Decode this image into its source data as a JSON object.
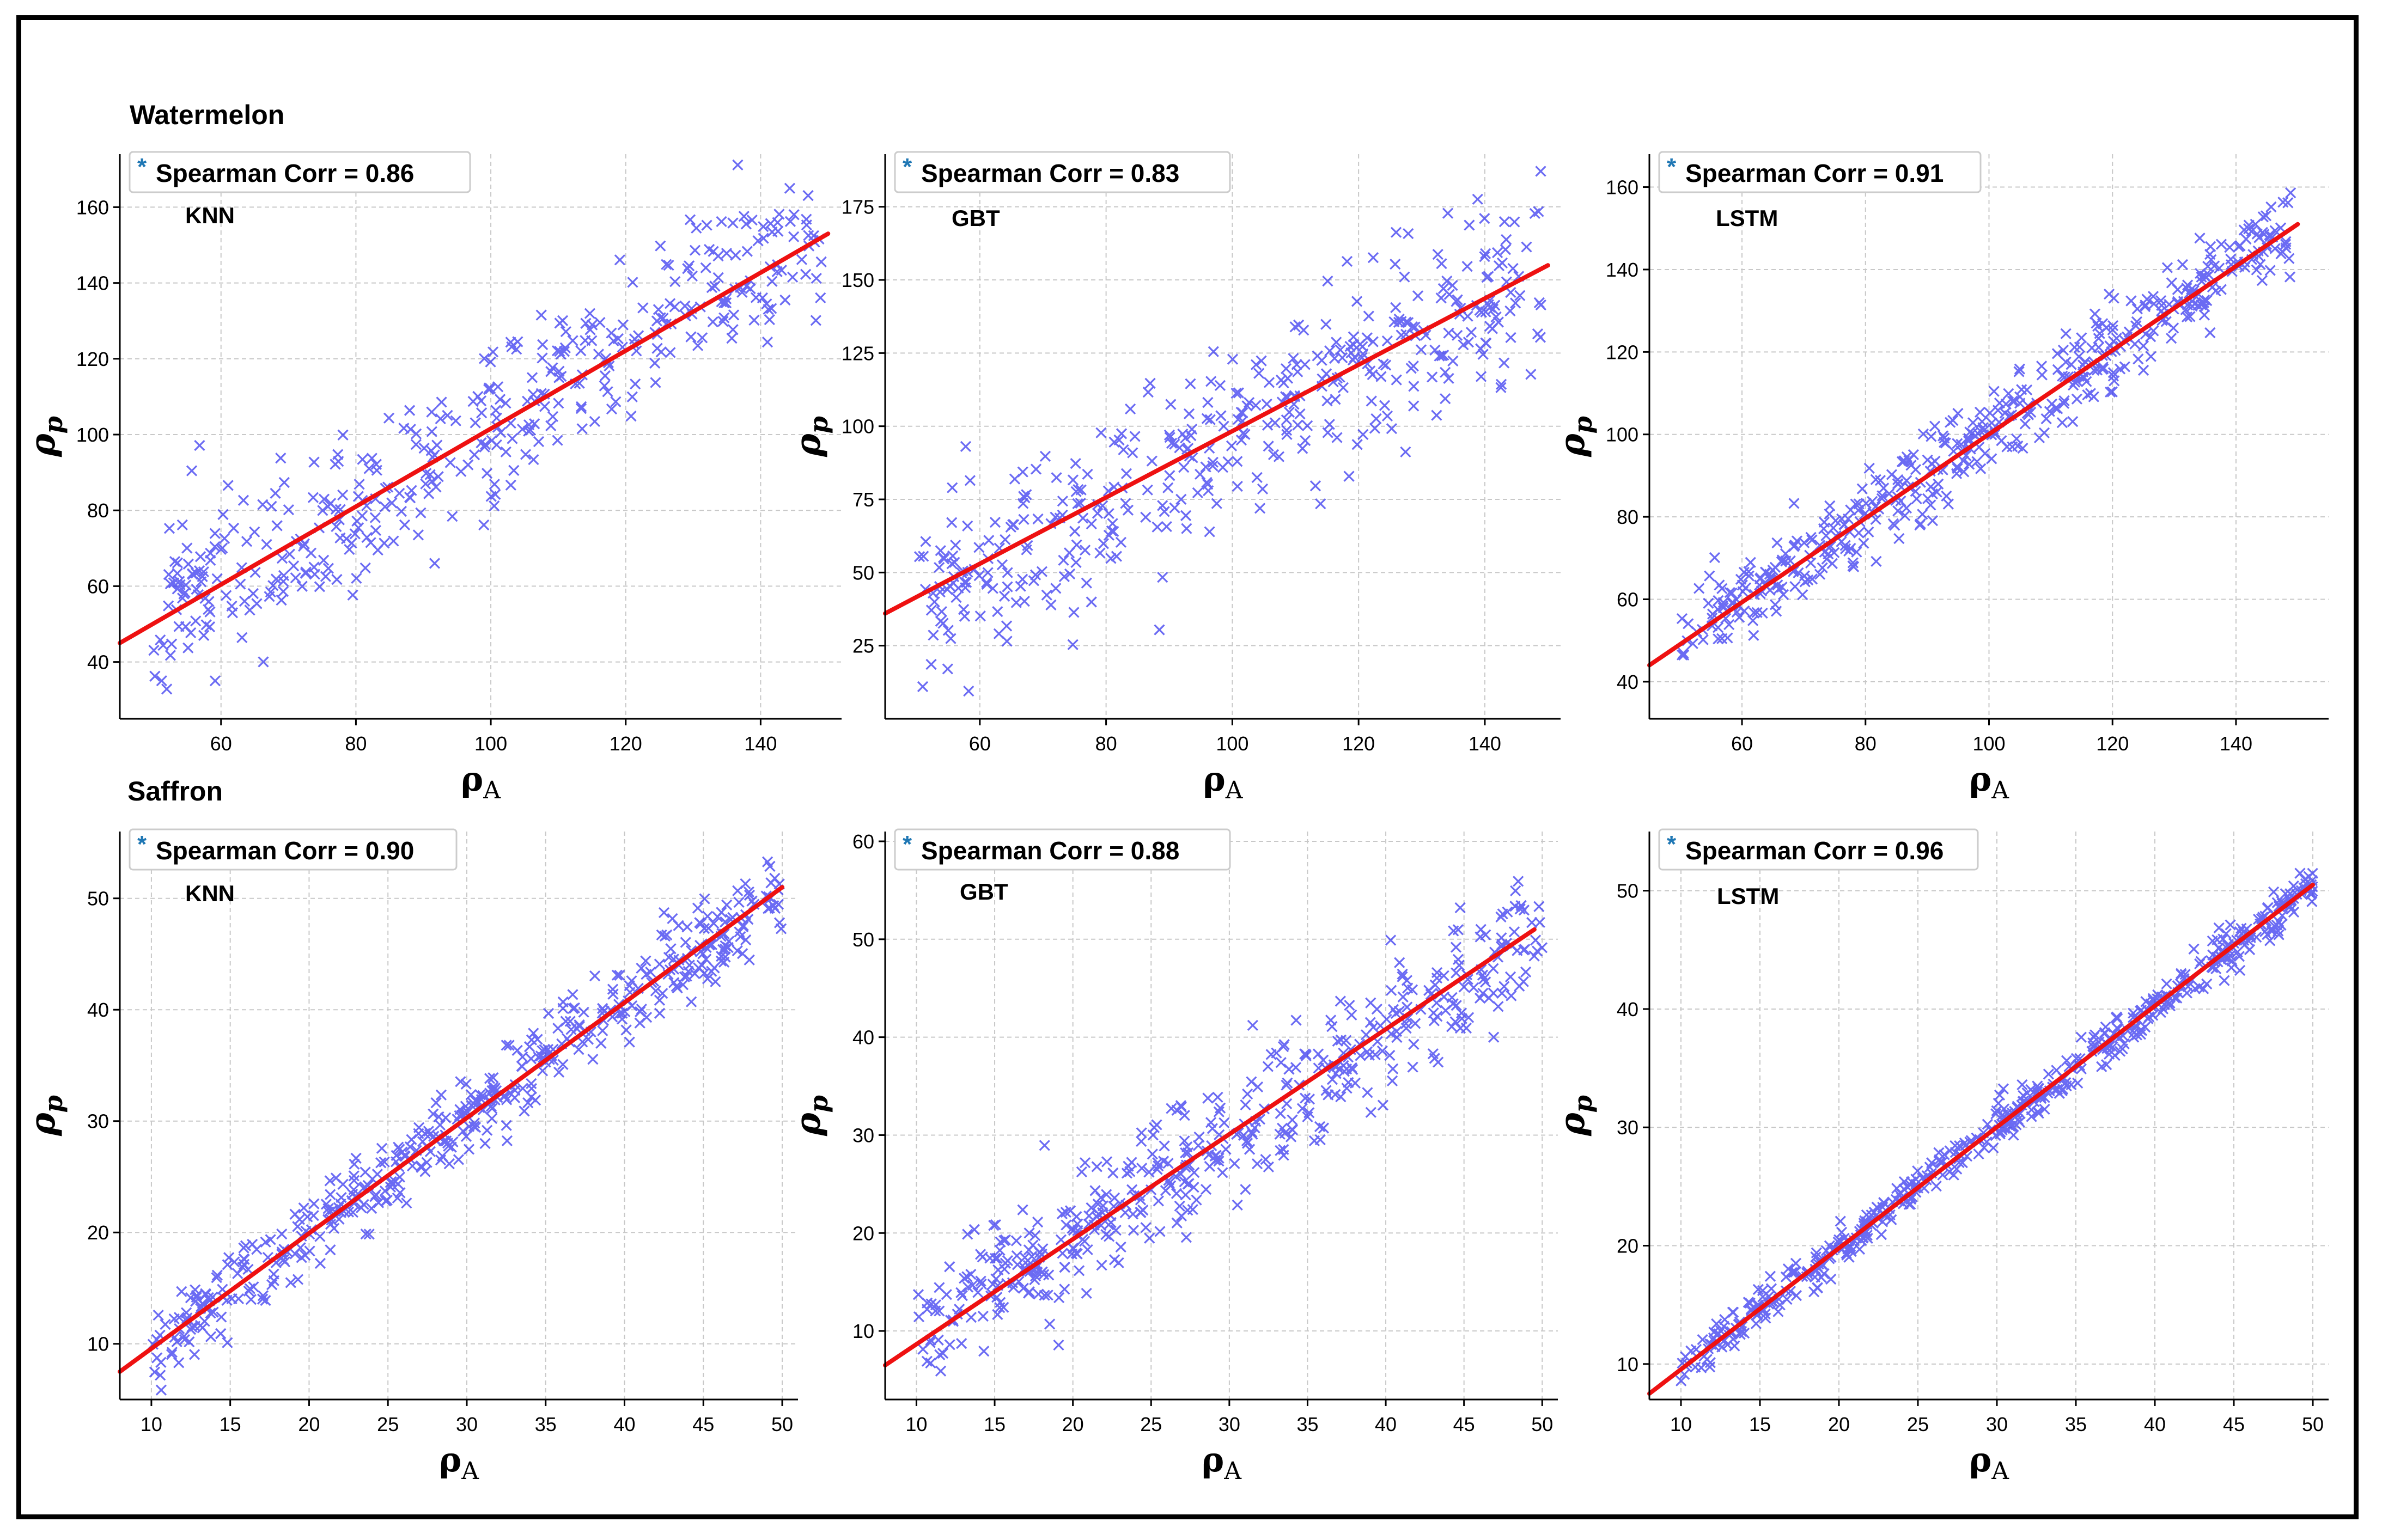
{
  "groups": [
    {
      "title": "Watermelon"
    },
    {
      "title": "Saffron"
    }
  ],
  "colors": {
    "points": "#3a3af0",
    "fit": "#ee1111",
    "grid": "#c8c8c8",
    "legend_marker": "#1f77b4"
  },
  "chart_data": [
    {
      "type": "scatter",
      "group": "Watermelon",
      "model": "KNN",
      "legend": "Spearman Corr = 0.86",
      "xlabel": "ρA",
      "ylabel": "ρp",
      "xlim": [
        45,
        152
      ],
      "ylim": [
        25,
        174
      ],
      "xticks": [
        60,
        80,
        100,
        120,
        140
      ],
      "yticks": [
        40,
        60,
        80,
        100,
        120,
        140,
        160
      ],
      "fit": {
        "x": [
          45,
          150
        ],
        "y": [
          45,
          153
        ]
      },
      "scatter": {
        "x_range": [
          50,
          149
        ],
        "slope": 1.03,
        "intercept": -0.5,
        "noise": 11,
        "n": 420,
        "seed": 11
      }
    },
    {
      "type": "scatter",
      "group": "Watermelon",
      "model": "GBT",
      "legend": "Spearman Corr = 0.83",
      "xlabel": "ρA",
      "ylabel": "ρp",
      "xlim": [
        45,
        152
      ],
      "ylim": [
        0,
        193
      ],
      "xticks": [
        60,
        80,
        100,
        120,
        140
      ],
      "yticks": [
        25,
        50,
        75,
        100,
        125,
        150,
        175
      ],
      "fit": {
        "x": [
          45,
          150
        ],
        "y": [
          36,
          155
        ]
      },
      "scatter": {
        "x_range": [
          50,
          149
        ],
        "slope": 1.13,
        "intercept": -15,
        "noise": 15,
        "n": 420,
        "seed": 23
      }
    },
    {
      "type": "scatter",
      "group": "Watermelon",
      "model": "LSTM",
      "legend": "Spearman Corr = 0.91",
      "xlabel": "ρA",
      "ylabel": "ρp",
      "xlim": [
        45,
        155
      ],
      "ylim": [
        31,
        168
      ],
      "xticks": [
        60,
        80,
        100,
        120,
        140
      ],
      "yticks": [
        40,
        60,
        80,
        100,
        120,
        140,
        160
      ],
      "fit": {
        "x": [
          45,
          150
        ],
        "y": [
          44,
          151
        ]
      },
      "scatter": {
        "x_range": [
          50,
          149
        ],
        "slope": 1.02,
        "intercept": -1.7,
        "noise": 5,
        "n": 480,
        "seed": 37
      }
    },
    {
      "type": "scatter",
      "group": "Saffron",
      "model": "KNN",
      "legend": "Spearman Corr = 0.90",
      "xlabel": "ρA",
      "ylabel": "ρp",
      "xlim": [
        8,
        51
      ],
      "ylim": [
        5,
        56
      ],
      "xticks": [
        10,
        15,
        20,
        25,
        30,
        35,
        40,
        45,
        50
      ],
      "yticks": [
        10,
        20,
        30,
        40,
        50
      ],
      "fit": {
        "x": [
          8,
          50
        ],
        "y": [
          7.5,
          51
        ]
      },
      "scatter": {
        "x_range": [
          10,
          50
        ],
        "slope": 1.03,
        "intercept": -0.5,
        "noise": 1.8,
        "n": 480,
        "seed": 5
      }
    },
    {
      "type": "scatter",
      "group": "Saffron",
      "model": "GBT",
      "legend": "Spearman Corr = 0.88",
      "xlabel": "ρA",
      "ylabel": "ρp",
      "xlim": [
        8,
        51
      ],
      "ylim": [
        3,
        61
      ],
      "xticks": [
        10,
        15,
        20,
        25,
        30,
        35,
        40,
        45,
        50
      ],
      "yticks": [
        10,
        20,
        30,
        40,
        50,
        60
      ],
      "fit": {
        "x": [
          8,
          49.5
        ],
        "y": [
          6.5,
          51
        ]
      },
      "scatter": {
        "x_range": [
          10,
          50
        ],
        "slope": 1.05,
        "intercept": -1.3,
        "noise": 3.2,
        "n": 480,
        "seed": 51
      }
    },
    {
      "type": "scatter",
      "group": "Saffron",
      "model": "LSTM",
      "legend": "Spearman Corr = 0.96",
      "xlabel": "ρA",
      "ylabel": "ρp",
      "xlim": [
        8,
        51
      ],
      "ylim": [
        7,
        55
      ],
      "xticks": [
        10,
        15,
        20,
        25,
        30,
        35,
        40,
        45,
        50
      ],
      "yticks": [
        10,
        20,
        30,
        40,
        50
      ],
      "fit": {
        "x": [
          8,
          50
        ],
        "y": [
          7.5,
          50.5
        ]
      },
      "scatter": {
        "x_range": [
          10,
          50
        ],
        "slope": 1.02,
        "intercept": -0.6,
        "noise": 0.9,
        "n": 520,
        "seed": 77
      }
    }
  ]
}
